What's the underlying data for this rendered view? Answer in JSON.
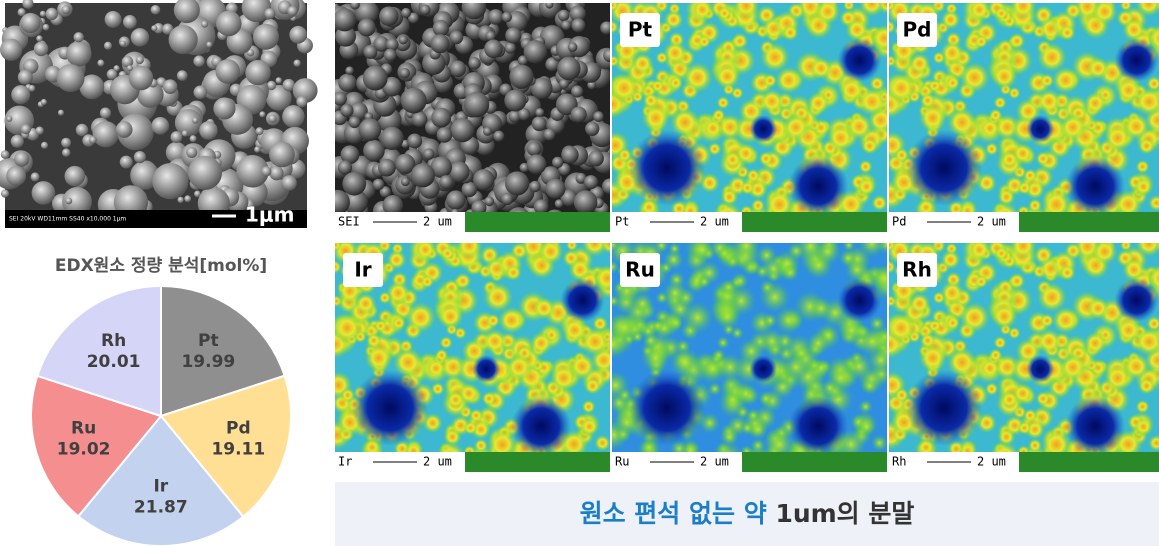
{
  "chart_data": {
    "type": "pie",
    "title": "EDX원소 정량 분석[mol%]",
    "categories": [
      "Pt",
      "Pd",
      "Ir",
      "Ru",
      "Rh"
    ],
    "values": [
      19.99,
      19.11,
      21.87,
      19.02,
      20.01
    ],
    "colors": [
      "#8f8f8f",
      "#ffdf93",
      "#c3d2ee",
      "#f58f8f",
      "#d5d5f7"
    ]
  },
  "sem_image": {
    "info": "SEI  20kV  WD11mm  SS40        x10,000   1μm",
    "scale": "1μm"
  },
  "maps": [
    {
      "label": null,
      "footer": "SEI",
      "scale": "2 um"
    },
    {
      "label": "Pt",
      "footer": "Pt",
      "scale": "2 um"
    },
    {
      "label": "Pd",
      "footer": "Pd",
      "scale": "2 um"
    },
    {
      "label": "Ir",
      "footer": "Ir",
      "scale": "2 um"
    },
    {
      "label": "Ru",
      "footer": "Ru",
      "scale": "2 um"
    },
    {
      "label": "Rh",
      "footer": "Rh",
      "scale": "2 um"
    }
  ],
  "caption": {
    "highlight": "원소 편석 없는 약",
    "rest": "1um의 분말"
  }
}
